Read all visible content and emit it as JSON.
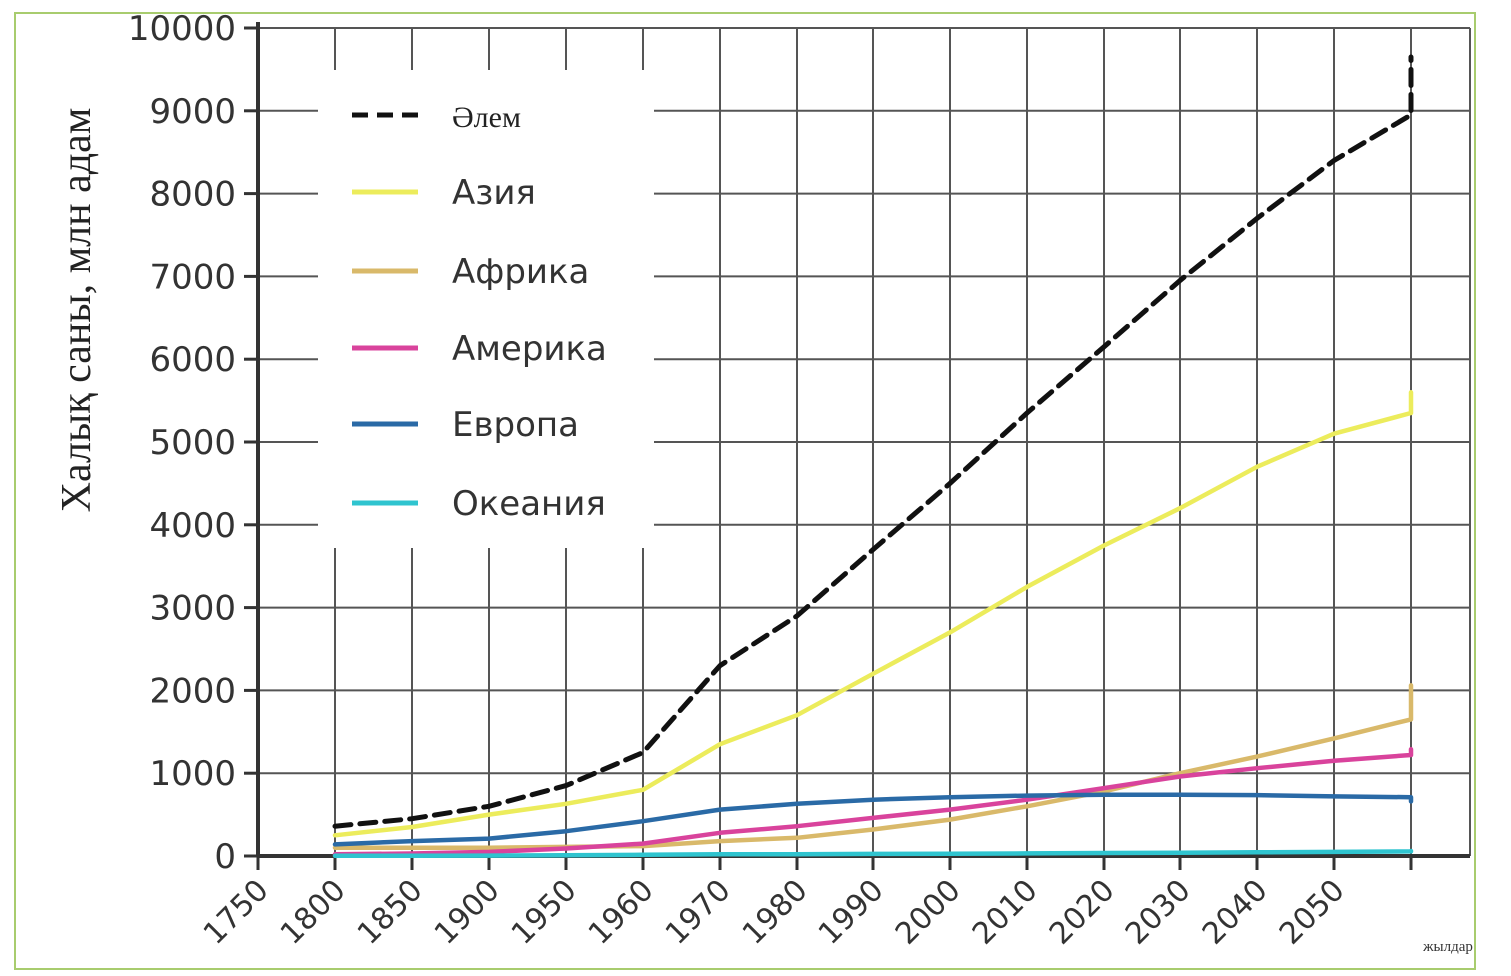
{
  "chart_data": {
    "type": "line",
    "title": "",
    "xlabel": "жылдар",
    "ylabel": "Халық саны, млн адам",
    "x_ticks": [
      "1750",
      "1800",
      "1850",
      "1900",
      "1950",
      "1960",
      "1970",
      "1980",
      "1990",
      "2000",
      "2010",
      "2020",
      "2030",
      "2040",
      "2050"
    ],
    "y_ticks": [
      "0",
      "1000",
      "2000",
      "3000",
      "4000",
      "5000",
      "6000",
      "7000",
      "8000",
      "9000",
      "10000"
    ],
    "ylim": [
      0,
      10000
    ],
    "grid": true,
    "legend_position": "top-left",
    "series": [
      {
        "name": "Әлем",
        "color": "#111111",
        "dash": true,
        "points": [
          [
            "1750",
            360
          ],
          [
            "1800",
            450
          ],
          [
            "1850",
            600
          ],
          [
            "1900",
            850
          ],
          [
            "1950",
            1250
          ],
          [
            "1960",
            2300
          ],
          [
            "1970",
            2900
          ],
          [
            "1980",
            3700
          ],
          [
            "1990",
            4500
          ],
          [
            "2000",
            5350
          ],
          [
            "2010",
            6150
          ],
          [
            "2020",
            6950
          ],
          [
            "2030",
            7700
          ],
          [
            "2040",
            8400
          ],
          [
            "2050",
            8950
          ],
          [
            "2060",
            9350
          ],
          [
            "2070",
            9650
          ]
        ]
      },
      {
        "name": "Азия",
        "color": "#ecec5c",
        "dash": false,
        "points": [
          [
            "1750",
            250
          ],
          [
            "1800",
            350
          ],
          [
            "1850",
            500
          ],
          [
            "1900",
            630
          ],
          [
            "1950",
            800
          ],
          [
            "1960",
            1350
          ],
          [
            "1970",
            1700
          ],
          [
            "1980",
            2200
          ],
          [
            "1990",
            2700
          ],
          [
            "2000",
            3250
          ],
          [
            "2010",
            3750
          ],
          [
            "2020",
            4200
          ],
          [
            "2030",
            4700
          ],
          [
            "2040",
            5100
          ],
          [
            "2050",
            5350
          ],
          [
            "2060",
            5500
          ],
          [
            "2070",
            5600
          ]
        ]
      },
      {
        "name": "Африка",
        "color": "#d9b96a",
        "dash": false,
        "points": [
          [
            "1750",
            100
          ],
          [
            "1800",
            100
          ],
          [
            "1850",
            100
          ],
          [
            "1900",
            110
          ],
          [
            "1950",
            120
          ],
          [
            "1960",
            180
          ],
          [
            "1970",
            220
          ],
          [
            "1980",
            320
          ],
          [
            "1990",
            440
          ],
          [
            "2000",
            600
          ],
          [
            "2010",
            780
          ],
          [
            "2020",
            1000
          ],
          [
            "2030",
            1200
          ],
          [
            "2040",
            1420
          ],
          [
            "2050",
            1650
          ],
          [
            "2060",
            1870
          ],
          [
            "2070",
            2060
          ]
        ]
      },
      {
        "name": "Америка",
        "color": "#d9439c",
        "dash": false,
        "points": [
          [
            "1750",
            20
          ],
          [
            "1800",
            30
          ],
          [
            "1850",
            50
          ],
          [
            "1900",
            90
          ],
          [
            "1950",
            150
          ],
          [
            "1960",
            280
          ],
          [
            "1970",
            360
          ],
          [
            "1980",
            460
          ],
          [
            "1990",
            560
          ],
          [
            "2000",
            680
          ],
          [
            "2010",
            820
          ],
          [
            "2020",
            960
          ],
          [
            "2030",
            1060
          ],
          [
            "2040",
            1150
          ],
          [
            "2050",
            1220
          ],
          [
            "2060",
            1270
          ],
          [
            "2070",
            1290
          ]
        ]
      },
      {
        "name": "Европа",
        "color": "#2a6aa6",
        "dash": false,
        "points": [
          [
            "1750",
            140
          ],
          [
            "1800",
            180
          ],
          [
            "1850",
            210
          ],
          [
            "1900",
            300
          ],
          [
            "1950",
            420
          ],
          [
            "1960",
            560
          ],
          [
            "1970",
            630
          ],
          [
            "1980",
            680
          ],
          [
            "1990",
            710
          ],
          [
            "2000",
            730
          ],
          [
            "2010",
            740
          ],
          [
            "2020",
            740
          ],
          [
            "2030",
            735
          ],
          [
            "2040",
            720
          ],
          [
            "2050",
            710
          ],
          [
            "2060",
            690
          ],
          [
            "2070",
            660
          ]
        ]
      },
      {
        "name": "Океания",
        "color": "#2fc4cf",
        "dash": false,
        "points": [
          [
            "1750",
            2
          ],
          [
            "1800",
            3
          ],
          [
            "1850",
            5
          ],
          [
            "1900",
            10
          ],
          [
            "1950",
            15
          ],
          [
            "1960",
            20
          ],
          [
            "1970",
            22
          ],
          [
            "1980",
            25
          ],
          [
            "1990",
            28
          ],
          [
            "2000",
            32
          ],
          [
            "2010",
            36
          ],
          [
            "2020",
            40
          ],
          [
            "2030",
            45
          ],
          [
            "2040",
            50
          ],
          [
            "2050",
            55
          ],
          [
            "2060",
            60
          ]
        ]
      }
    ]
  }
}
